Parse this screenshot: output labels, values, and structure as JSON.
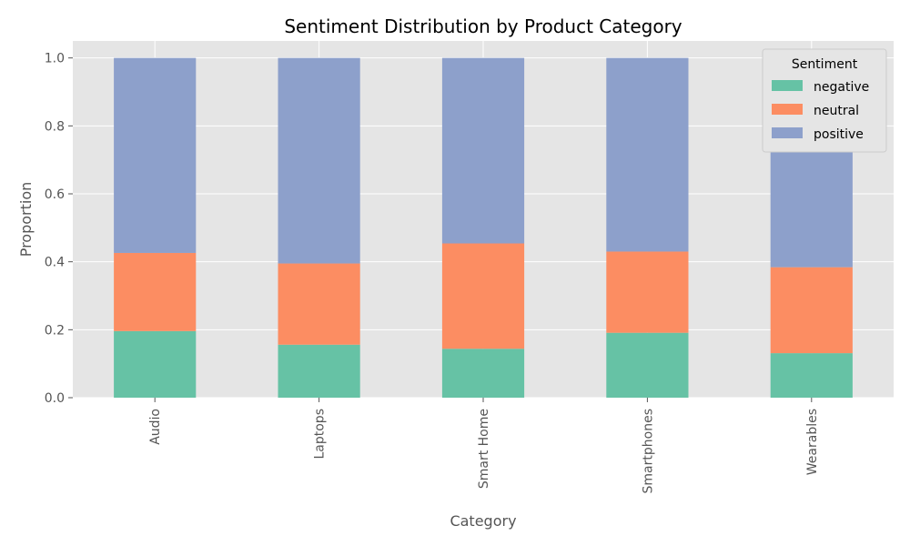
{
  "chart_data": {
    "type": "bar",
    "stacked": true,
    "title": "Sentiment Distribution by Product Category",
    "xlabel": "Category",
    "ylabel": "Proportion",
    "categories": [
      "Audio",
      "Laptops",
      "Smart Home",
      "Smartphones",
      "Wearables"
    ],
    "series": [
      {
        "name": "negative",
        "color": "#66c2a5",
        "values": [
          0.196,
          0.156,
          0.144,
          0.191,
          0.131
        ]
      },
      {
        "name": "neutral",
        "color": "#fc8d62",
        "values": [
          0.23,
          0.239,
          0.31,
          0.239,
          0.253
        ]
      },
      {
        "name": "positive",
        "color": "#8da0cb",
        "values": [
          0.574,
          0.605,
          0.546,
          0.57,
          0.616
        ]
      }
    ],
    "ylim": [
      0,
      1.05
    ],
    "yticks": [
      "0.0",
      "0.2",
      "0.4",
      "0.6",
      "0.8",
      "1.0"
    ],
    "grid": true,
    "legend": {
      "title": "Sentiment",
      "position": "top-right"
    }
  }
}
